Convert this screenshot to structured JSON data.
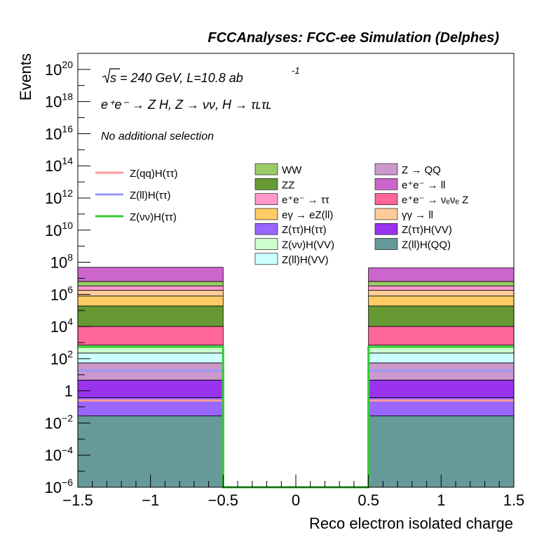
{
  "chart_data": {
    "type": "bar",
    "title": "FCCAnalyses: FCC-ee Simulation (Delphes)",
    "xlabel": "Reco electron isolated charge",
    "ylabel": "Events",
    "x_range": [
      -1.5,
      1.5
    ],
    "y_range": [
      1e-06,
      1e+21
    ],
    "y_scale": "log",
    "x_ticks": [
      "−1.5",
      "−1",
      "−0.5",
      "0",
      "0.5",
      "1",
      "1.5"
    ],
    "y_ticks": [
      {
        "base": "10",
        "exp": "20"
      },
      {
        "base": "10",
        "exp": "18"
      },
      {
        "base": "10",
        "exp": "16"
      },
      {
        "base": "10",
        "exp": "14"
      },
      {
        "base": "10",
        "exp": "12"
      },
      {
        "base": "10",
        "exp": "10"
      },
      {
        "base": "10",
        "exp": "8"
      },
      {
        "base": "10",
        "exp": "6"
      },
      {
        "base": "10",
        "exp": "4"
      },
      {
        "base": "10",
        "exp": "2"
      },
      {
        "base": "1",
        "exp": ""
      },
      {
        "base": "10",
        "exp": "−2"
      },
      {
        "base": "10",
        "exp": "−4"
      },
      {
        "base": "10",
        "exp": "−6"
      }
    ],
    "annotations": {
      "energy": "s = 240 GeV, L=10.8 ab",
      "energy_exp": "-1",
      "process": "e⁺e⁻ → Z H, Z → νν, H → τʟτʟ",
      "selection": "No additional selection"
    },
    "bins": [
      {
        "label": "-1",
        "x_range": [
          -1.5,
          -0.5
        ]
      },
      {
        "label": "1",
        "x_range": [
          0.5,
          1.5
        ]
      }
    ],
    "stack_bottom_to_top": [
      {
        "name": "Z(ll)H(QQ)",
        "color": "#669999",
        "values": [
          0.028,
          0.028
        ]
      },
      {
        "name": "Z(ττ)H(ττ)",
        "color": "#9966ff",
        "values": [
          0.35,
          0.35
        ]
      },
      {
        "name": "Z(ττ)H(VV)",
        "color": "#9933ee",
        "values": [
          4.3,
          4.3
        ]
      },
      {
        "name": "Z → QQ",
        "color": "#cc99cc",
        "values": [
          50,
          50
        ]
      },
      {
        "name": "Z(ll)H(VV)",
        "color": "#ccffff",
        "values": [
          170,
          170
        ]
      },
      {
        "name": "Z(νν)H(VV)",
        "color": "#ccffcc",
        "values": [
          470,
          470
        ]
      },
      {
        "name": "e⁺e⁻ → νₑνₑ Z",
        "color": "#ff6699",
        "values": [
          9500,
          9500
        ]
      },
      {
        "name": "ZZ",
        "color": "#669933",
        "values": [
          180000,
          180000
        ]
      },
      {
        "name": "eγ → eZ(ll)",
        "color": "#ffcc66",
        "values": [
          600000,
          600000
        ]
      },
      {
        "name": "γγ → ll",
        "color": "#ffcc99",
        "values": [
          1000000,
          1000000
        ]
      },
      {
        "name": "e⁺e⁻ → ττ",
        "color": "#ff99cc",
        "values": [
          1600000,
          1600000
        ]
      },
      {
        "name": "WW",
        "color": "#99cc66",
        "values": [
          3000000,
          3000000
        ]
      },
      {
        "name": "e⁺e⁻ → ll",
        "color": "#cc66cc",
        "values": [
          42000000,
          38000000
        ]
      }
    ],
    "signals": [
      {
        "name": "Z(qq)H(ττ)",
        "color": "#ff9999",
        "values": [
          0.25,
          0.25
        ]
      },
      {
        "name": "Z(ll)H(ττ)",
        "color": "#9999ff",
        "values": [
          18,
          18
        ]
      },
      {
        "name": "Z(νν)H(ττ)",
        "color": "#33cc33",
        "values": [
          550,
          550
        ]
      }
    ],
    "legend_columns": [
      [
        "WW",
        "ZZ",
        "e⁺e⁻ → ττ",
        "eγ → eZ(ll)",
        "Z(ττ)H(ττ)",
        "Z(νν)H(VV)",
        "Z(ll)H(VV)"
      ],
      [
        "Z → QQ",
        "e⁺e⁻ → ll",
        "e⁺e⁻ → νₑνₑ Z",
        "γγ → ll",
        "Z(ττ)H(VV)",
        "Z(ll)H(QQ)"
      ]
    ],
    "grid": false
  }
}
